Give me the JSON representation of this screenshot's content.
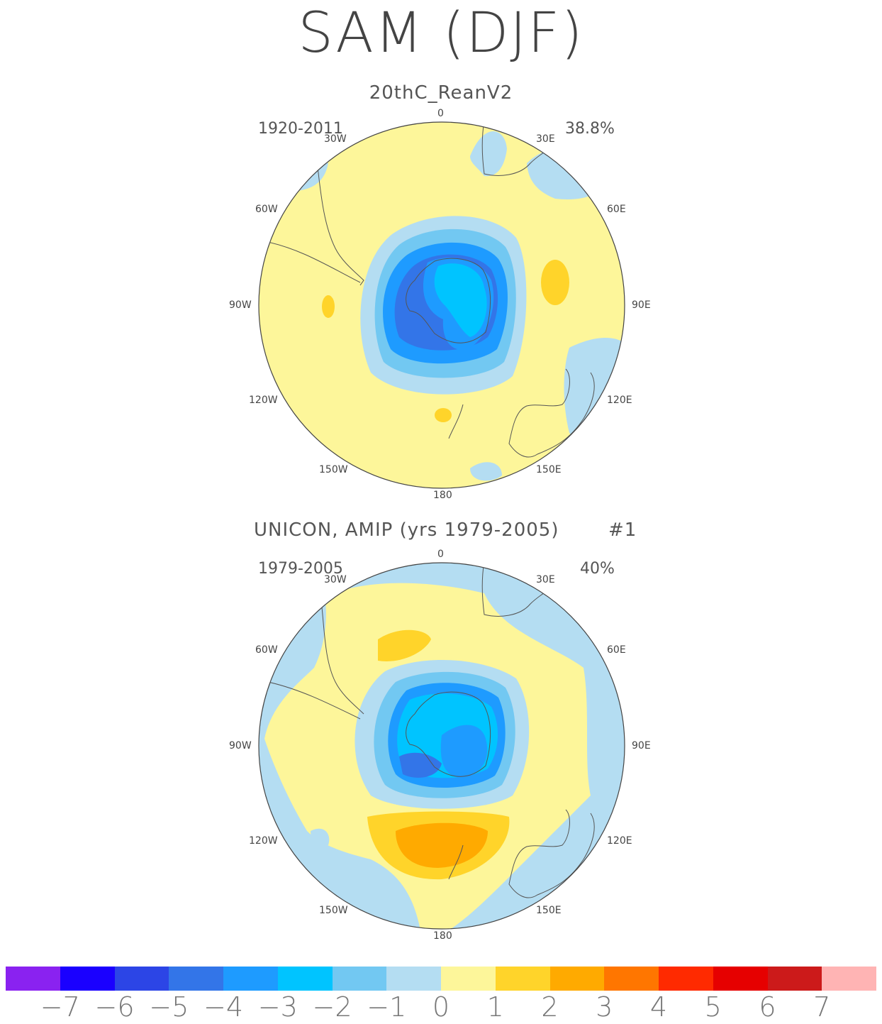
{
  "title": "SAM (DJF)",
  "panels": [
    {
      "subtitle": "20thC_ReanV2",
      "period": "1920-2011",
      "percent": "38.8%",
      "lon_labels": {
        "n0": "0",
        "n30e": "30E",
        "n60e": "60E",
        "n90e": "90E",
        "n120e": "120E",
        "n150e": "150E",
        "n180": "180",
        "n150w": "150W",
        "n120w": "120W",
        "n90w": "90W",
        "n60w": "60W",
        "n30w": "30W"
      }
    },
    {
      "subtitle": "UNICON, AMIP (yrs 1979-2005)",
      "ensemble": "#1",
      "period": "1979-2005",
      "percent": "40%",
      "lon_labels": {
        "n0": "0",
        "n30e": "30E",
        "n60e": "60E",
        "n90e": "90E",
        "n120e": "120E",
        "n150e": "150E",
        "n180": "180",
        "n150w": "150W",
        "n120w": "120W",
        "n90w": "90W",
        "n60w": "60W",
        "n30w": "30W"
      }
    }
  ],
  "colorbar": {
    "colors": [
      "#8a22f0",
      "#1a00ff",
      "#2c45e6",
      "#3375e8",
      "#1e9bff",
      "#00c4ff",
      "#72c8f2",
      "#b4ddf2",
      "#fdf69a",
      "#ffd42a",
      "#ffaa00",
      "#ff7600",
      "#ff2a00",
      "#e60000",
      "#cc1a1a",
      "#ffb4b4"
    ],
    "labels": [
      "-7",
      "-6",
      "-5",
      "-4",
      "-3",
      "-2",
      "-1",
      "0",
      "1",
      "2",
      "3",
      "4",
      "5",
      "6",
      "7"
    ]
  }
}
